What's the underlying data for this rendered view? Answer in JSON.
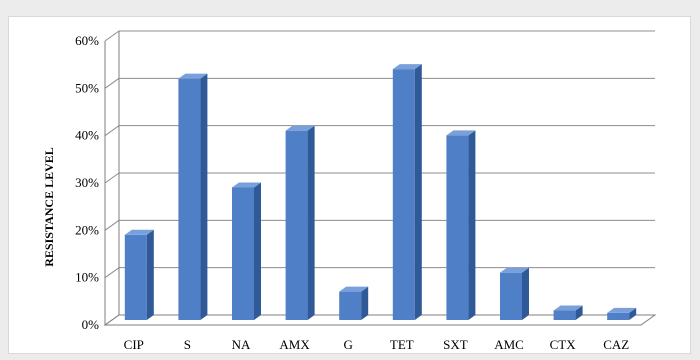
{
  "chart_data": {
    "type": "bar",
    "style": "3d-column",
    "title": "",
    "xlabel": "",
    "ylabel": "RESISTANCE LEVEL",
    "categories": [
      "CIP",
      "S",
      "NA",
      "AMX",
      "G",
      "TET",
      "SXT",
      "AMC",
      "CTX",
      "CAZ"
    ],
    "values": [
      18,
      51,
      28,
      40,
      6,
      53,
      39,
      10,
      2,
      1.5
    ],
    "ylim": [
      0,
      60
    ],
    "y_ticks": [
      0,
      10,
      20,
      30,
      40,
      50,
      60
    ],
    "y_tick_labels": [
      "0%",
      "10%",
      "20%",
      "30%",
      "40%",
      "50%",
      "60%"
    ],
    "grid": true,
    "legend": "none",
    "colors": {
      "bar_front": "#4f7fc6",
      "bar_side": "#2f5a97",
      "bar_top": "#7aa0dc",
      "grid": "#8c8c8c",
      "axis": "#7f7f7f"
    }
  }
}
